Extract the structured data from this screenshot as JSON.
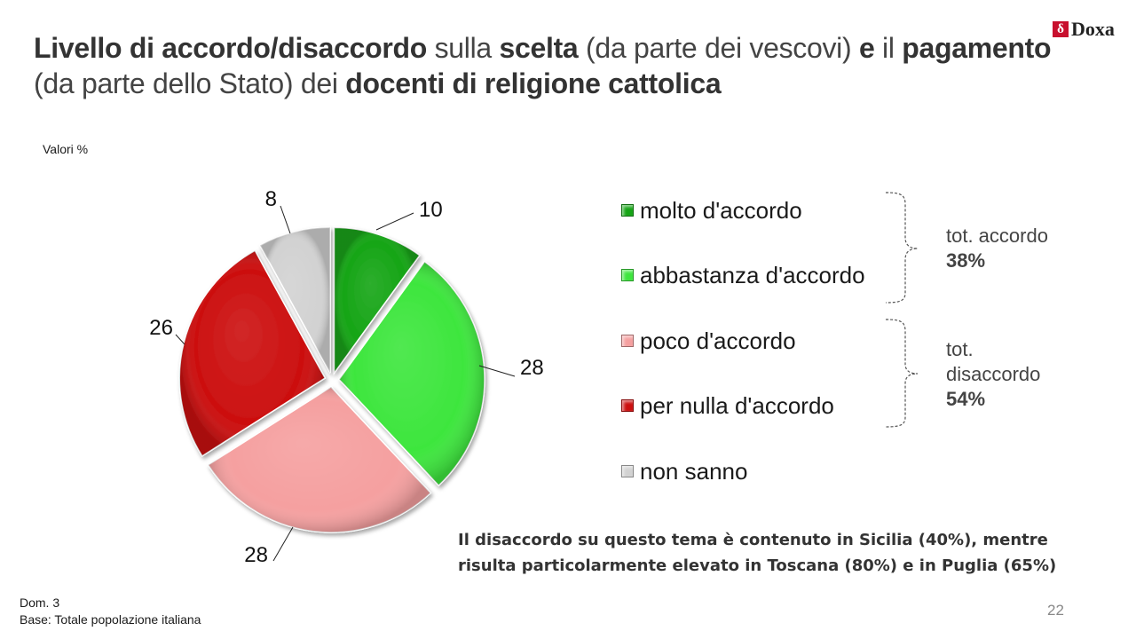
{
  "header": {
    "title_parts": [
      {
        "text": "Livello di accordo/disaccordo",
        "bold": true
      },
      {
        "text": " sulla ",
        "bold": false
      },
      {
        "text": "scelta",
        "bold": true
      },
      {
        "text": " (da parte dei vescovi) ",
        "bold": false
      },
      {
        "text": "e",
        "bold": true
      },
      {
        "text": " il ",
        "bold": false
      },
      {
        "text": "pagamento",
        "bold": true
      },
      {
        "text": " (da parte dello Stato) dei ",
        "bold": false
      },
      {
        "text": "docenti di religione cattolica",
        "bold": true
      }
    ],
    "logo_mark": "δ",
    "logo_text": "Doxa"
  },
  "chart_data": {
    "type": "pie",
    "unit_label": "Valori %",
    "start": "12 o'clock, clockwise, slices exploded",
    "slices": [
      {
        "label": "molto d'accordo",
        "value": 10,
        "color": "#16a516"
      },
      {
        "label": "abbastanza d'accordo",
        "value": 28,
        "color": "#3ee63e"
      },
      {
        "label": "poco d'accordo",
        "value": 28,
        "color": "#f5a0a0"
      },
      {
        "label": "per nulla d'accordo",
        "value": 26,
        "color": "#cc1010"
      },
      {
        "label": "non sanno",
        "value": 8,
        "color": "#d2d2d2"
      }
    ],
    "legend_position": "right",
    "groups": [
      {
        "label": "tot. accordo",
        "value": "38%"
      },
      {
        "label": "tot. disaccordo",
        "value": "54%"
      }
    ]
  },
  "note": "Il disaccordo su questo tema è contenuto in Sicilia (40%), mentre risulta particolarmente elevato in Toscana (80%) e in Puglia (65%)",
  "footer": {
    "question": "Dom. 3",
    "base": "Base: Totale popolazione italiana"
  },
  "page_number": "22"
}
